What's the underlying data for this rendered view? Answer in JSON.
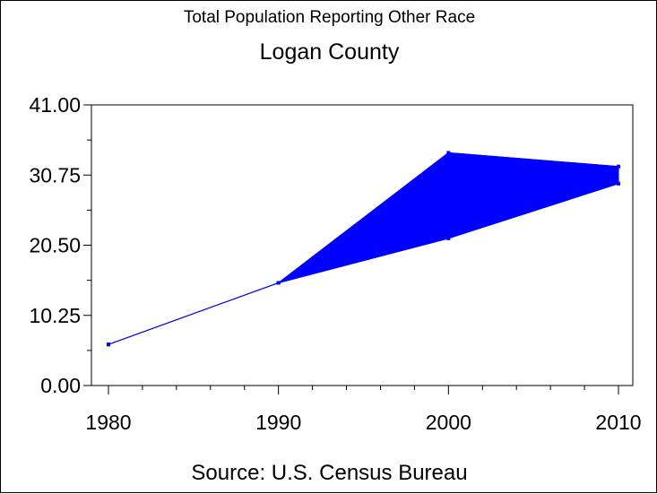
{
  "chart_data": {
    "type": "area",
    "title": "Total Population Reporting Other Race",
    "subtitle": "Logan County",
    "footnote": "Source: U.S. Census Bureau",
    "x": [
      1980,
      1990,
      2000,
      2010
    ],
    "series": [
      {
        "values": [
          6,
          15,
          34,
          32
        ]
      },
      {
        "values": [
          6,
          15,
          21.5,
          29.5
        ]
      }
    ],
    "xlim": [
      1980,
      2010
    ],
    "ylim": [
      0,
      41
    ],
    "yticks": [
      "0.00",
      "10.25",
      "20.50",
      "30.75",
      "41.00"
    ],
    "xticks": [
      "1980",
      "1990",
      "2000",
      "2010"
    ],
    "xlabel": "",
    "ylabel": "",
    "grid": false,
    "color": "#0000ff"
  }
}
